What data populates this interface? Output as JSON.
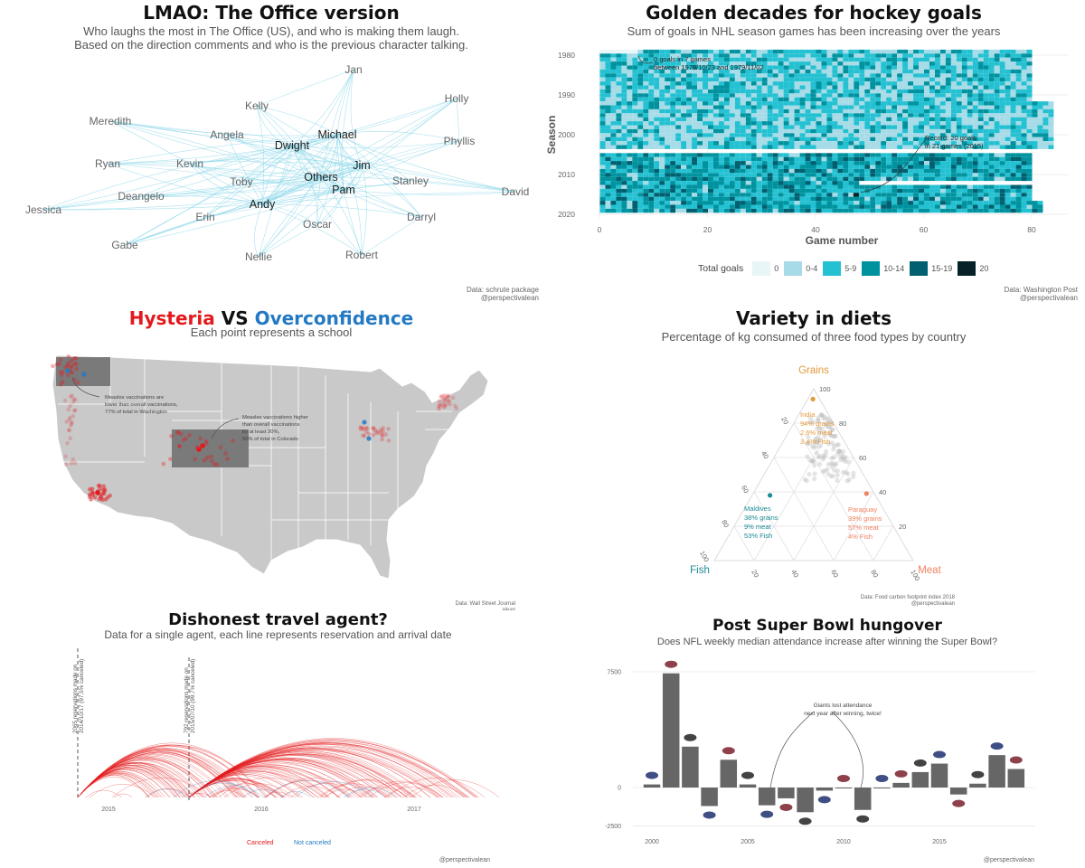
{
  "office": {
    "title": "LMAO: The Office version",
    "subtitle1": "Who laughs the most in The Office (US), and who is making them laugh.",
    "subtitle2": "Based on the direction comments and who is the previous character talking.",
    "credit1": "Data: schrute package",
    "credit2": "@perspectivalean",
    "nodes": [
      {
        "name": "Jan",
        "major": false
      },
      {
        "name": "Holly",
        "major": false
      },
      {
        "name": "Kelly",
        "major": false
      },
      {
        "name": "Meredith",
        "major": false
      },
      {
        "name": "Angela",
        "major": false
      },
      {
        "name": "Michael",
        "major": true
      },
      {
        "name": "Dwight",
        "major": true
      },
      {
        "name": "Phyllis",
        "major": false
      },
      {
        "name": "Ryan",
        "major": false
      },
      {
        "name": "Kevin",
        "major": false
      },
      {
        "name": "Jim",
        "major": true
      },
      {
        "name": "Others",
        "major": true
      },
      {
        "name": "Stanley",
        "major": false
      },
      {
        "name": "Toby",
        "major": false
      },
      {
        "name": "Pam",
        "major": true
      },
      {
        "name": "David",
        "major": false
      },
      {
        "name": "Deangelo",
        "major": false
      },
      {
        "name": "Andy",
        "major": true
      },
      {
        "name": "Jessica",
        "major": false
      },
      {
        "name": "Erin",
        "major": false
      },
      {
        "name": "Darryl",
        "major": false
      },
      {
        "name": "Oscar",
        "major": false
      },
      {
        "name": "Gabe",
        "major": false
      },
      {
        "name": "Nellie",
        "major": false
      },
      {
        "name": "Robert",
        "major": false
      }
    ],
    "edge_color": "#8fd8ea"
  },
  "hockey": {
    "title": "Golden decades for hockey goals",
    "subtitle": "Sum of goals in NHL season games has been increasing over the years",
    "chart_data": {
      "type": "heatmap",
      "xlabel": "Game number",
      "ylabel": "Season",
      "x_ticks": [
        "0",
        "20",
        "40",
        "60",
        "80"
      ],
      "y_ticks": [
        "1980",
        "1990",
        "2000",
        "2010",
        "2020"
      ],
      "xlim": [
        0,
        85
      ],
      "ylim": [
        1979,
        2020
      ],
      "annotations": [
        {
          "text_lines": [
            "0 goals in 7 games",
            "between 1979/10/23 and 1979/11/02"
          ]
        },
        {
          "text_lines": [
            "Record: 20 goals",
            "in 21 games (2015)"
          ]
        }
      ],
      "legend_title": "Total goals",
      "legend": [
        {
          "label": "0",
          "color": "#e8f6f8"
        },
        {
          "label": "0-4",
          "color": "#a6dbe7"
        },
        {
          "label": "5-9",
          "color": "#24c1d2"
        },
        {
          "label": "10-14",
          "color": "#00939f"
        },
        {
          "label": "15-19",
          "color": "#006070"
        },
        {
          "label": "20",
          "color": "#062127"
        }
      ]
    },
    "credit1": "Data: Washington Post",
    "credit2": "@perspectivalean"
  },
  "measles": {
    "title_a": "Hysteria",
    "title_vs": " VS ",
    "title_b": "Overconfidence",
    "color_a": "#e3191c",
    "color_b": "#2479c3",
    "subtitle": "Each point represents a school",
    "annot1": [
      "Measles vaccinations are",
      "lower than overall vaccinations,",
      "77% of total in Washington"
    ],
    "annot2": [
      "Measles vaccinations higher",
      "than overall vaccinations",
      "by at least 20%,",
      "50% of total in Colorado"
    ],
    "credit1": "Data: Wall Street Journal",
    "credit2": "alean"
  },
  "diets": {
    "title": "Variety in diets",
    "subtitle": "Percentage of kg consumed of three food types by country",
    "chart_data": {
      "type": "scatter",
      "axes": {
        "top": "Grains",
        "left": "Fish",
        "right": "Meat"
      },
      "axis_colors": {
        "Grains": "#e39a3b",
        "Fish": "#1b8a94",
        "Meat": "#f08260"
      },
      "ticks": [
        "20",
        "40",
        "60",
        "80",
        "100"
      ],
      "highlights": [
        {
          "country": "India",
          "grains": 94,
          "meat": 2.6,
          "fish": 3.4,
          "lines": [
            "India",
            "94% grains",
            "2,6% meat",
            "3,4% Fish"
          ],
          "color": "#e39a3b"
        },
        {
          "country": "Maldives",
          "grains": 38,
          "meat": 9,
          "fish": 53,
          "lines": [
            "Maldives",
            "38% grains",
            "9% meat",
            "53% Fish"
          ],
          "color": "#1b8a94"
        },
        {
          "country": "Paraguay",
          "grains": 39,
          "meat": 57,
          "fish": 4,
          "lines": [
            "Paraguay",
            "39% grains",
            "57% meat",
            "4% Fish"
          ],
          "color": "#f08260"
        }
      ]
    },
    "credit1": "Data: Food carbon footprint index 2018",
    "credit2": "@perspectivalean"
  },
  "travel": {
    "title": "Dishonest travel agent?",
    "subtitle": "Data for a single agent, each line represents reservation and arrival date",
    "chart_data": {
      "type": "line",
      "x_ticks": [
        "2015",
        "2016",
        "2017"
      ],
      "legend": [
        {
          "name": "Canceled",
          "color": "#e3191c"
        },
        {
          "name": "Not canceled",
          "color": "#2479c3"
        }
      ]
    },
    "vline1": [
      "2065 reservations made on",
      "2014/10/17 (97,5% canceled)"
    ],
    "vline2": [
      "792 reservations made on",
      "2015/07/10 (99,7% canceled)"
    ],
    "credit": "@perspectivalean"
  },
  "superbowl": {
    "title": "Post Super Bowl hungover",
    "subtitle": "Does NFL weekly median attendance increase after winning the Super Bowl?",
    "annotation": [
      "Giants lost attendance",
      "next year after winning, twice!"
    ],
    "credit": "@perspectivalean",
    "chart_data": {
      "type": "bar",
      "x": [
        2000,
        2001,
        2002,
        2003,
        2004,
        2005,
        2006,
        2007,
        2008,
        2009,
        2010,
        2011,
        2012,
        2013,
        2014,
        2015,
        2016,
        2017,
        2018,
        2019
      ],
      "values": [
        200,
        7400,
        2650,
        -1200,
        1800,
        200,
        -1150,
        -700,
        -1600,
        -200,
        0,
        -1450,
        0,
        300,
        1000,
        1550,
        -450,
        250,
        2100,
        1200
      ],
      "x_ticks": [
        "2000",
        "2005",
        "2010",
        "2015"
      ],
      "y_ticks": [
        "7500",
        "0",
        "-2500"
      ],
      "ylim": [
        -2600,
        7800
      ],
      "bar_color": "#666666"
    }
  }
}
